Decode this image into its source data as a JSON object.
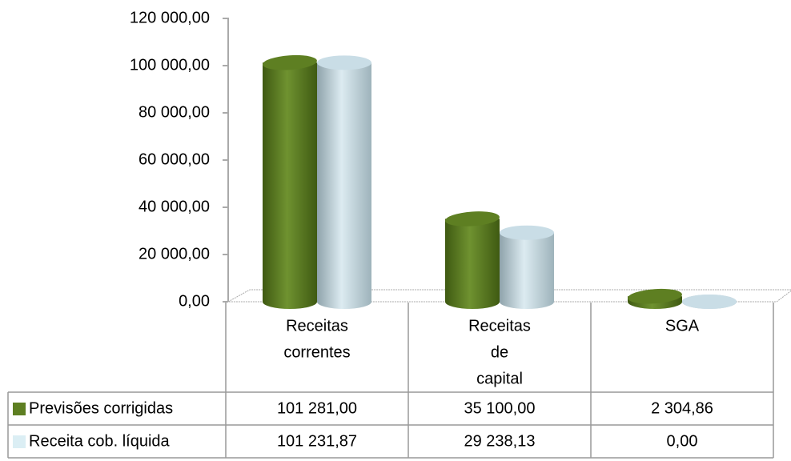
{
  "chart_data": {
    "type": "bar",
    "categories": [
      [
        "Receitas",
        "correntes"
      ],
      [
        "Receitas",
        "de",
        "capital"
      ],
      [
        "SGA"
      ]
    ],
    "series": [
      {
        "name": "Previsões corrigidas",
        "color": "#5e7f22",
        "values": [
          101281.0,
          35100.0,
          2304.86
        ],
        "value_labels": [
          "101 281,00",
          "35 100,00",
          "2 304,86"
        ]
      },
      {
        "name": "Receita cob. líquida",
        "color": "#c9dde6",
        "values": [
          101231.87,
          29238.13,
          0.0
        ],
        "value_labels": [
          "101 231,87",
          "29 238,13",
          "0,00"
        ]
      }
    ],
    "ylim": [
      0,
      120000
    ],
    "yticks": [
      {
        "value": 0,
        "label": "0,00"
      },
      {
        "value": 20000,
        "label": "20 000,00"
      },
      {
        "value": 40000,
        "label": "40 000,00"
      },
      {
        "value": 60000,
        "label": "60 000,00"
      },
      {
        "value": 80000,
        "label": "80 000,00"
      },
      {
        "value": 100000,
        "label": "100 000,00"
      },
      {
        "value": 120000,
        "label": "120 000,00"
      }
    ],
    "grid": false
  }
}
